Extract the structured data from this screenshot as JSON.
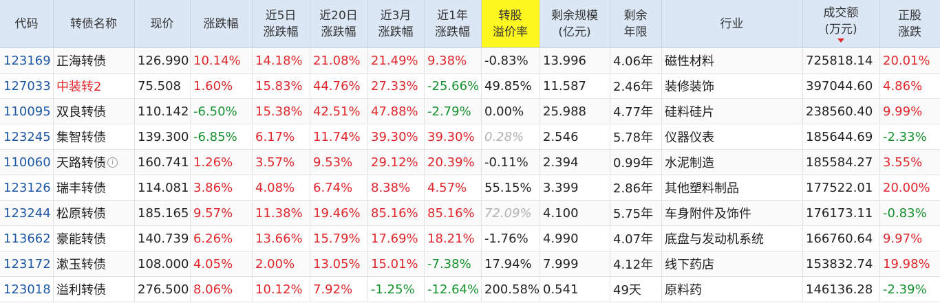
{
  "headers": {
    "code": [
      "代码"
    ],
    "name": [
      "转债名称"
    ],
    "price": [
      "现价"
    ],
    "chg": [
      "涨跌幅"
    ],
    "chg5": [
      "近5日",
      "涨跌幅"
    ],
    "chg20": [
      "近20日",
      "涨跌幅"
    ],
    "chg3m": [
      "近3月",
      "涨跌幅"
    ],
    "chg1y": [
      "近1年",
      "涨跌幅"
    ],
    "premium": [
      "转股",
      "溢价率"
    ],
    "scale": [
      "剩余规模",
      "(亿元)"
    ],
    "term": [
      "剩余",
      "年限"
    ],
    "industry": [
      "行业"
    ],
    "turnover": [
      "成交额",
      "(万元)"
    ],
    "stock_chg": [
      "正股",
      "涨跌"
    ]
  },
  "sort_column": "turnover",
  "sort_direction": "desc",
  "colors": {
    "up": "#e0262b",
    "down": "#16912f",
    "code": "#1d58a5",
    "highlight_header": "#fff720",
    "header_bg": "#dbe7f5"
  },
  "rows": [
    {
      "code": "123169",
      "name": "正海转债",
      "price": "126.990",
      "chg": "10.14%",
      "chg5": "14.18%",
      "chg20": "21.08%",
      "chg3m": "21.49%",
      "chg1y": "9.38%",
      "premium": "-0.83%",
      "scale": "13.996",
      "term": "4.06年",
      "industry": "磁性材料",
      "turnover": "725818.14",
      "stock_chg": "20.01%"
    },
    {
      "code": "127033",
      "name": "中装转2",
      "price": "75.508",
      "chg": "1.60%",
      "chg5": "15.83%",
      "chg20": "44.76%",
      "chg3m": "27.33%",
      "chg1y": "-25.66%",
      "premium": "49.85%",
      "scale": "11.587",
      "term": "2.46年",
      "industry": "装修装饰",
      "turnover": "397044.60",
      "stock_chg": "4.86%"
    },
    {
      "code": "110095",
      "name": "双良转债",
      "price": "110.142",
      "chg": "-6.50%",
      "chg5": "15.38%",
      "chg20": "42.51%",
      "chg3m": "47.88%",
      "chg1y": "-2.79%",
      "premium": "0.00%",
      "scale": "25.988",
      "term": "4.77年",
      "industry": "硅料硅片",
      "turnover": "238560.40",
      "stock_chg": "9.99%"
    },
    {
      "code": "123245",
      "name": "集智转债",
      "price": "139.300",
      "chg": "-6.85%",
      "chg5": "6.17%",
      "chg20": "11.74%",
      "chg3m": "39.30%",
      "chg1y": "39.30%",
      "premium": "0.28%",
      "scale": "2.546",
      "term": "5.78年",
      "industry": "仪器仪表",
      "turnover": "185644.69",
      "stock_chg": "-2.33%"
    },
    {
      "code": "110060",
      "name": "天路转债",
      "price": "160.741",
      "chg": "1.26%",
      "chg5": "3.57%",
      "chg20": "9.53%",
      "chg3m": "29.12%",
      "chg1y": "20.39%",
      "premium": "-0.11%",
      "scale": "2.394",
      "term": "0.99年",
      "industry": "水泥制造",
      "turnover": "185584.27",
      "stock_chg": "3.55%"
    },
    {
      "code": "123126",
      "name": "瑞丰转债",
      "price": "114.081",
      "chg": "3.86%",
      "chg5": "4.08%",
      "chg20": "6.74%",
      "chg3m": "8.38%",
      "chg1y": "4.57%",
      "premium": "55.15%",
      "scale": "3.399",
      "term": "2.86年",
      "industry": "其他塑料制品",
      "turnover": "177522.01",
      "stock_chg": "20.00%"
    },
    {
      "code": "123244",
      "name": "松原转债",
      "price": "185.165",
      "chg": "9.57%",
      "chg5": "11.38%",
      "chg20": "19.46%",
      "chg3m": "85.16%",
      "chg1y": "85.16%",
      "premium": "72.09%",
      "scale": "4.100",
      "term": "5.75年",
      "industry": "车身附件及饰件",
      "turnover": "176173.11",
      "stock_chg": "-0.83%"
    },
    {
      "code": "113662",
      "name": "豪能转债",
      "price": "140.739",
      "chg": "6.26%",
      "chg5": "13.66%",
      "chg20": "15.79%",
      "chg3m": "17.69%",
      "chg1y": "18.21%",
      "premium": "-1.76%",
      "scale": "4.990",
      "term": "4.07年",
      "industry": "底盘与发动机系统",
      "turnover": "166760.64",
      "stock_chg": "9.97%"
    },
    {
      "code": "123172",
      "name": "漱玉转债",
      "price": "108.000",
      "chg": "4.05%",
      "chg5": "2.00%",
      "chg20": "13.05%",
      "chg3m": "15.01%",
      "chg1y": "-7.38%",
      "premium": "17.94%",
      "scale": "7.999",
      "term": "4.12年",
      "industry": "线下药店",
      "turnover": "153832.74",
      "stock_chg": "19.98%"
    },
    {
      "code": "123018",
      "name": "溢利转债",
      "price": "276.500",
      "chg": "8.06%",
      "chg5": "10.12%",
      "chg20": "7.92%",
      "chg3m": "-1.25%",
      "chg1y": "-12.64%",
      "premium": "200.58%",
      "scale": "0.541",
      "term": "49天",
      "industry": "原料药",
      "turnover": "146136.28",
      "stock_chg": "-2.39%"
    }
  ],
  "special": {
    "red_name_rows": [
      1
    ],
    "grayed_premium_rows": [
      3,
      6
    ],
    "info_icon_rows": [
      4
    ]
  }
}
